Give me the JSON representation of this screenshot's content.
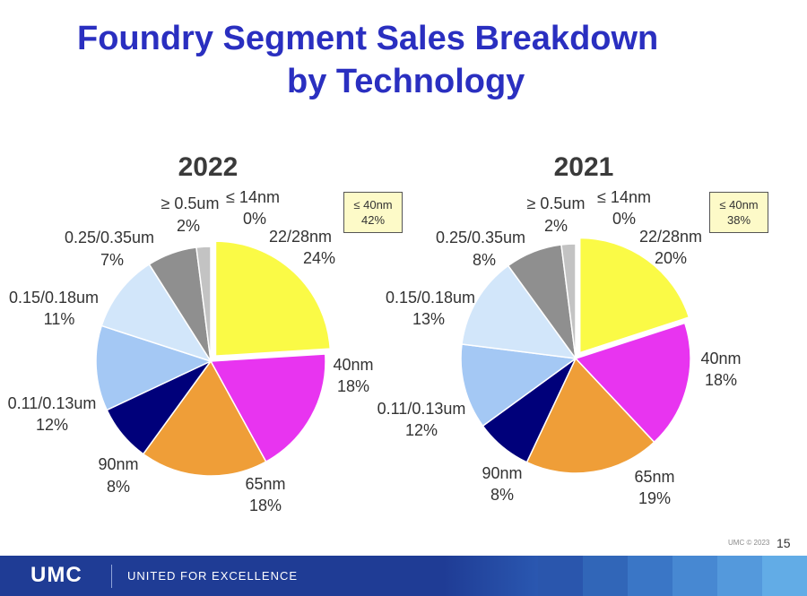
{
  "title": {
    "line1": "Foundry Segment Sales Breakdown",
    "line2": "by Technology"
  },
  "chart_data": [
    {
      "type": "pie",
      "title": "2022",
      "categories": [
        "22/28nm",
        "40nm",
        "65nm",
        "90nm",
        "0.11/0.13um",
        "0.15/0.18um",
        "0.25/0.35um",
        "≥ 0.5um",
        "≤ 14nm"
      ],
      "values": [
        24,
        18,
        18,
        8,
        12,
        11,
        7,
        2,
        0
      ],
      "value_labels": [
        "24%",
        "18%",
        "18%",
        "8%",
        "12%",
        "11%",
        "7%",
        "2%",
        "0%"
      ],
      "exploded": "22/28nm",
      "callout": {
        "line1": "≤ 40nm",
        "line2": "42%"
      }
    },
    {
      "type": "pie",
      "title": "2021",
      "categories": [
        "22/28nm",
        "40nm",
        "65nm",
        "90nm",
        "0.11/0.13um",
        "0.15/0.18um",
        "0.25/0.35um",
        "≥ 0.5um",
        "≤ 14nm"
      ],
      "values": [
        20,
        18,
        19,
        8,
        12,
        13,
        8,
        2,
        0
      ],
      "value_labels": [
        "20%",
        "18%",
        "19%",
        "8%",
        "12%",
        "13%",
        "8%",
        "2%",
        "0%"
      ],
      "exploded": "22/28nm",
      "callout": {
        "line1": "≤ 40nm",
        "line2": "38%"
      }
    }
  ],
  "colors": {
    "22/28nm": "#fafa46",
    "40nm": "#e834f0",
    "65nm": "#ef9e38",
    "90nm": "#00007a",
    "0.11/0.13um": "#a4c8f4",
    "0.15/0.18um": "#d2e6fa",
    "0.25/0.35um": "#8f8f8f",
    "≥ 0.5um": "#c3c3c3",
    "≤ 14nm": "#6e6e6e",
    "title": "#2a2fc0"
  },
  "footer": {
    "logo": "UMC",
    "tagline": "UNITED FOR EXCELLENCE",
    "copyright": "UMC © 2023",
    "page": "15"
  }
}
